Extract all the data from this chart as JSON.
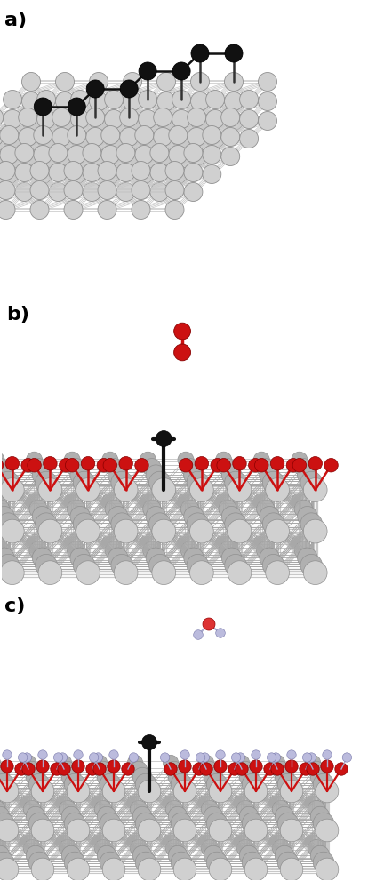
{
  "bg_color": "#ffffff",
  "label_fontsize": 16,
  "label_weight": "bold",
  "labels": [
    "a)",
    "b)",
    "c)"
  ],
  "silver_color": "#d0d0d0",
  "silver_edge": "#909090",
  "silver_dark": "#b0b0b0",
  "bond_color": "#c8c8c8",
  "bond_color_dark": "#a8a8a8",
  "black_color": "#111111",
  "red_color": "#cc1111",
  "red_dark": "#880000",
  "blue_color": "#aaaacc",
  "blue_edge": "#7777aa"
}
